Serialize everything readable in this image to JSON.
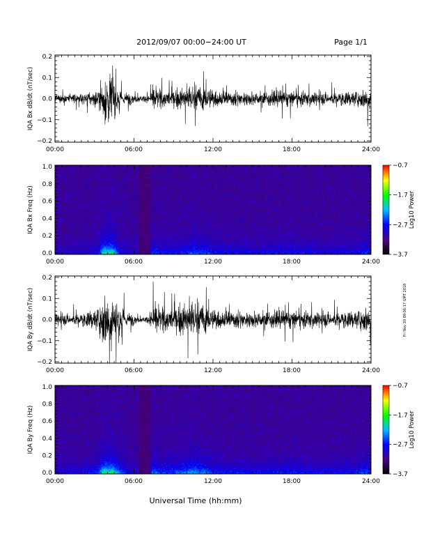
{
  "header": {
    "title": "2012/09/07  00:00−24:00 UT",
    "page": "Page 1/1"
  },
  "stamp": "Fri Nov 30 09:06:17 GMT 2018",
  "x_axis_title": "Universal Time (hh:mm)",
  "colors": {
    "trace": "#000000",
    "spectrogram_background": "#1a0830",
    "colormap": [
      "#000000",
      "#4b0082",
      "#0000ff",
      "#00bfff",
      "#00ff00",
      "#ffff00",
      "#ff0000"
    ]
  },
  "chart_data": [
    {
      "type": "line",
      "panel": "iqa-bx-dbdt",
      "ylabel": "IQA Bx dB/dt (nT/sec)",
      "xticks": [
        "00:00",
        "06:00",
        "12:00",
        "18:00",
        "24:00"
      ],
      "yticks": [
        "0.2",
        "0.1",
        "0.0",
        "−0.1",
        "−0.2"
      ],
      "xlim_hours": [
        0,
        24
      ],
      "ylim": [
        -0.21,
        0.21
      ],
      "activity_profile": {
        "hours": [
          0,
          1,
          2,
          3.3,
          3.6,
          4.0,
          4.4,
          4.9,
          5.5,
          6.5,
          7.2,
          7.4,
          8,
          9,
          10,
          10.5,
          11,
          11.5,
          12,
          13,
          14,
          15,
          16,
          17,
          18,
          19,
          20,
          21,
          22,
          23,
          23.7,
          24
        ],
        "amplitude": [
          0.035,
          0.035,
          0.04,
          0.06,
          0.2,
          0.2,
          0.2,
          0.06,
          0.05,
          0.025,
          0.03,
          0.09,
          0.07,
          0.07,
          0.09,
          0.11,
          0.1,
          0.1,
          0.07,
          0.06,
          0.06,
          0.05,
          0.055,
          0.065,
          0.065,
          0.06,
          0.05,
          0.05,
          0.055,
          0.06,
          0.09,
          0.06
        ]
      }
    },
    {
      "type": "heatmap",
      "panel": "iqa-bx-spectrogram",
      "ylabel": "IQA Bx Freq (Hz)",
      "xticks": [
        "00:00",
        "06:00",
        "12:00",
        "18:00",
        "24:00"
      ],
      "yticks": [
        "1.0",
        "0.8",
        "0.6",
        "0.4",
        "0.2",
        "0.0"
      ],
      "xlim_hours": [
        0,
        24
      ],
      "ylim": [
        0.0,
        1.0
      ],
      "colorbar": {
        "label": "Log10 Power",
        "ticks": [
          "−0.7",
          "−1.7",
          "−2.7",
          "−3.7"
        ],
        "range": [
          -3.7,
          -0.7
        ]
      }
    },
    {
      "type": "line",
      "panel": "iqa-by-dbdt",
      "ylabel": "IQA By dB/dt (nT/sec)",
      "xticks": [
        "00:00",
        "06:00",
        "12:00",
        "18:00",
        "24:00"
      ],
      "yticks": [
        "0.2",
        "0.1",
        "0.0",
        "−0.1",
        "−0.2"
      ],
      "xlim_hours": [
        0,
        24
      ],
      "ylim": [
        -0.21,
        0.21
      ],
      "activity_profile": {
        "hours": [
          0,
          1,
          2,
          3.3,
          3.6,
          4.0,
          4.4,
          4.9,
          5.5,
          6.5,
          7.2,
          7.4,
          8,
          9,
          10,
          10.5,
          11,
          11.5,
          12,
          13,
          14,
          15,
          16,
          17,
          18,
          19,
          20,
          21,
          22,
          23,
          23.7,
          24
        ],
        "amplitude": [
          0.045,
          0.045,
          0.05,
          0.09,
          0.21,
          0.21,
          0.21,
          0.12,
          0.06,
          0.02,
          0.03,
          0.13,
          0.09,
          0.1,
          0.13,
          0.15,
          0.13,
          0.12,
          0.08,
          0.07,
          0.07,
          0.06,
          0.065,
          0.07,
          0.075,
          0.07,
          0.06,
          0.06,
          0.065,
          0.07,
          0.11,
          0.07
        ]
      }
    },
    {
      "type": "heatmap",
      "panel": "iqa-by-spectrogram",
      "ylabel": "IQA By Freq (Hz)",
      "xticks": [
        "00:00",
        "06:00",
        "12:00",
        "18:00",
        "24:00"
      ],
      "yticks": [
        "1.0",
        "0.8",
        "0.6",
        "0.4",
        "0.2",
        "0.0"
      ],
      "xlim_hours": [
        0,
        24
      ],
      "ylim": [
        0.0,
        1.0
      ],
      "colorbar": {
        "label": "Log10 Power",
        "ticks": [
          "−0.7",
          "−1.7",
          "−2.7",
          "−3.7"
        ],
        "range": [
          -3.7,
          -0.7
        ]
      }
    }
  ]
}
